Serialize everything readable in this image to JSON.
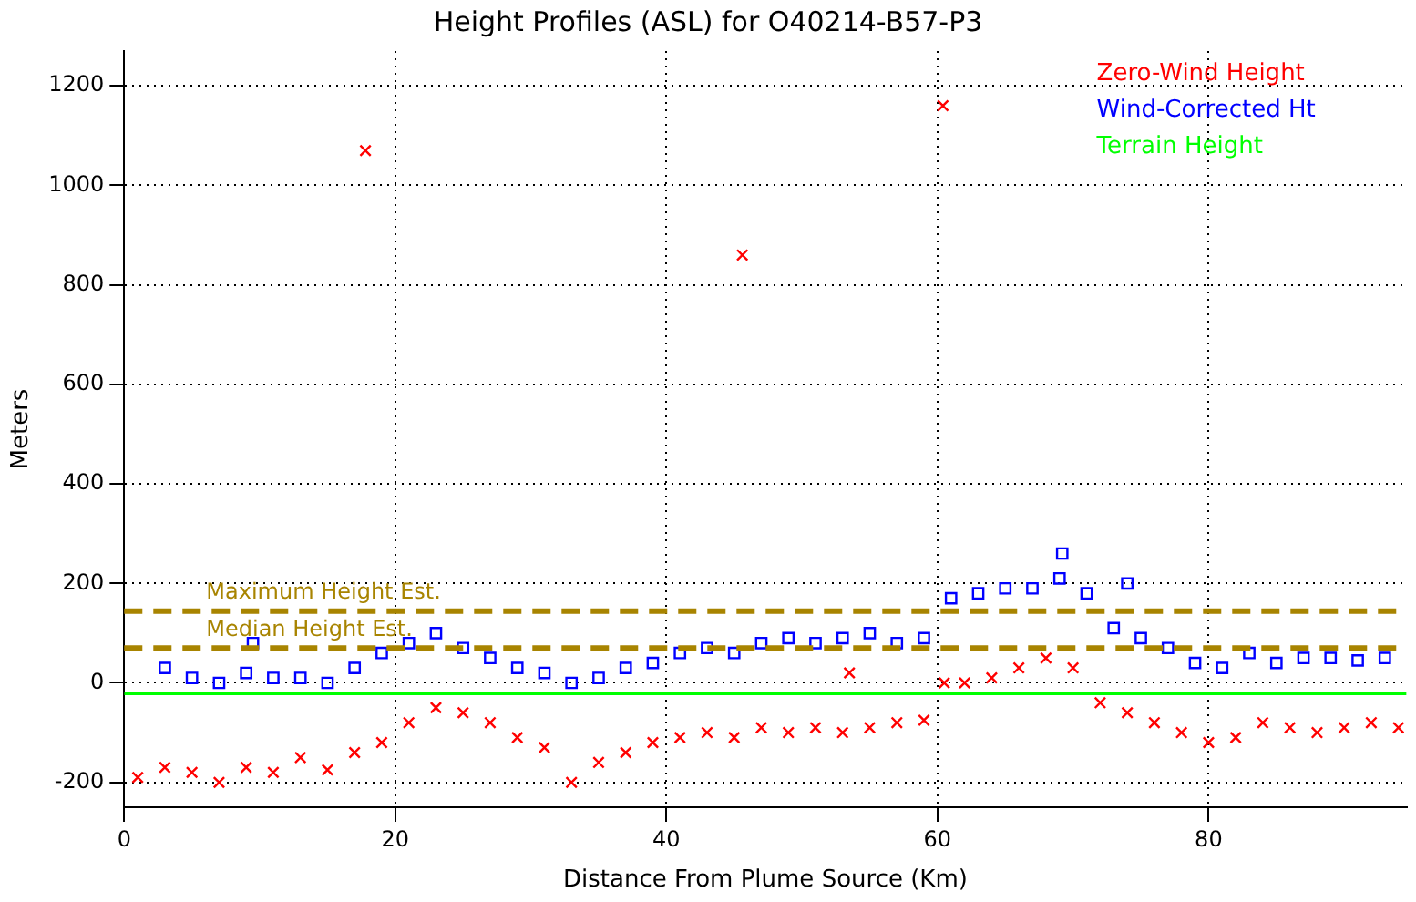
{
  "chart_data": {
    "type": "scatter",
    "title": "Height Profiles (ASL) for O40214-B57-P3",
    "xlabel": "Distance From Plume Source (Km)",
    "ylabel": "Meters",
    "xlim": [
      0,
      94.6
    ],
    "xticks": [
      0,
      20,
      40,
      60,
      80
    ],
    "ylim": [
      -250,
      1270
    ],
    "yticks": [
      -200,
      0,
      200,
      400,
      600,
      800,
      1000,
      1200
    ],
    "grid": true,
    "legend": "top right",
    "series": [
      {
        "name": "Zero-Wind Height",
        "color": "#ff0000",
        "marker": "cross",
        "x": [
          1,
          3,
          5,
          7,
          9,
          11,
          13,
          15,
          17,
          17.8,
          19,
          21,
          23,
          25,
          27,
          29,
          31,
          33,
          35,
          37,
          39,
          41,
          43,
          45,
          45.6,
          47,
          49,
          51,
          53,
          53.5,
          55,
          57,
          59,
          60.4,
          60.5,
          62,
          64,
          66,
          68,
          70,
          72,
          74,
          76,
          78,
          80,
          82,
          84,
          86,
          88,
          90,
          92,
          94
        ],
        "values": [
          -190,
          -170,
          -180,
          -200,
          -170,
          -180,
          -150,
          -175,
          -140,
          1070,
          -120,
          -80,
          -50,
          -60,
          -80,
          -110,
          -130,
          -200,
          -160,
          -140,
          -120,
          -110,
          -100,
          -110,
          860,
          -90,
          -100,
          -90,
          -100,
          20,
          -90,
          -80,
          -75,
          1160,
          0,
          0,
          10,
          30,
          50,
          30,
          -40,
          -60,
          -80,
          -100,
          -120,
          -110,
          -80,
          -90,
          -100,
          -90,
          -80,
          -90
        ]
      },
      {
        "name": "Wind-Corrected Ht",
        "color": "#0000ff",
        "marker": "square",
        "x": [
          3,
          5,
          7,
          9,
          9.5,
          11,
          13,
          15,
          17,
          19,
          21,
          23,
          25,
          27,
          29,
          31,
          33,
          35,
          37,
          39,
          41,
          43,
          45,
          47,
          49,
          51,
          53,
          55,
          57,
          59,
          61,
          63,
          65,
          67,
          69,
          69.2,
          71,
          73,
          74,
          75,
          77,
          79,
          81,
          83,
          85,
          87,
          89,
          91,
          93
        ],
        "values": [
          30,
          10,
          0,
          20,
          80,
          10,
          10,
          0,
          30,
          60,
          80,
          100,
          70,
          50,
          30,
          20,
          0,
          10,
          30,
          40,
          60,
          70,
          60,
          80,
          90,
          80,
          90,
          100,
          80,
          90,
          170,
          180,
          190,
          190,
          210,
          260,
          180,
          110,
          200,
          90,
          70,
          40,
          30,
          60,
          40,
          50,
          50,
          45,
          50
        ]
      },
      {
        "name": "Terrain Height",
        "color": "#00ff00",
        "type": "line",
        "marker": "none",
        "x": [
          0,
          94.6
        ],
        "values": [
          -22,
          -22
        ]
      }
    ],
    "ref_lines": [
      {
        "axis": "y",
        "value": 144,
        "label": "Maximum Height Est.",
        "color": "#a88400",
        "line_style": "dashed"
      },
      {
        "axis": "y",
        "value": 70,
        "label": "Median Height Est.",
        "color": "#a88400",
        "line_style": "dashed"
      }
    ]
  }
}
